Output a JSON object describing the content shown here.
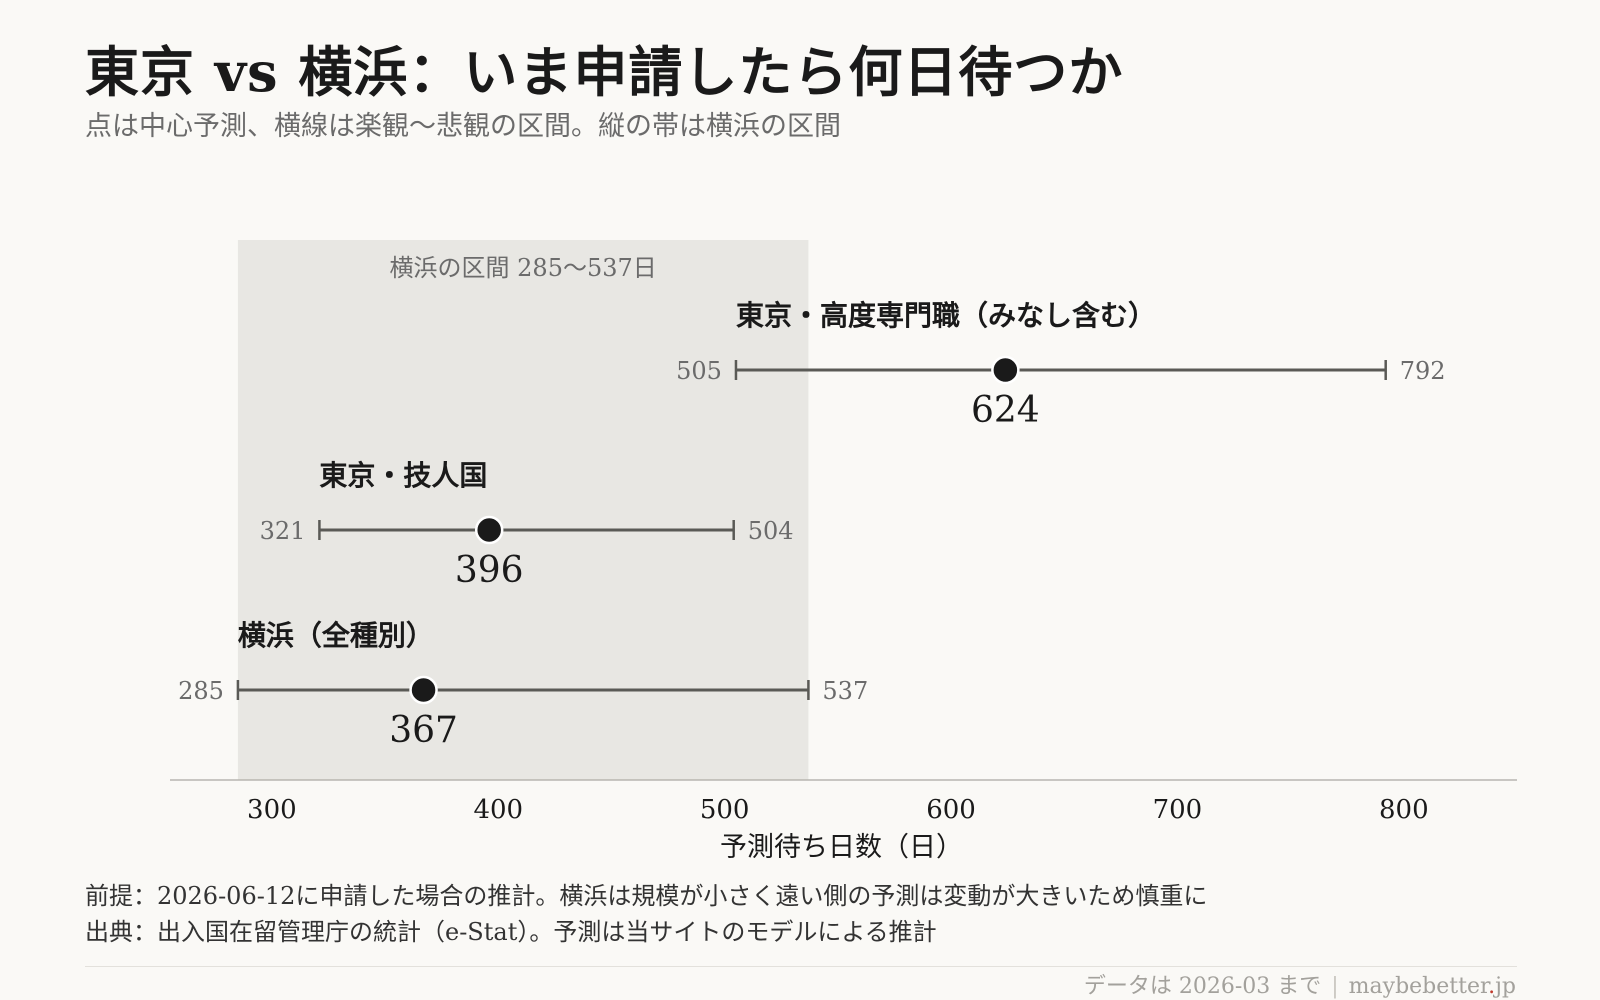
{
  "header": {
    "title": "東京 vs 横浜：いま申請したら何日待つか",
    "subtitle": "点は中心予測、横線は楽観〜悲観の区間。縦の帯は横浜の区間"
  },
  "chart_data": {
    "type": "dot-range",
    "xlabel": "予測待ち日数（日）",
    "xlim": [
      255,
      850
    ],
    "xticks": [
      300,
      400,
      500,
      600,
      700,
      800
    ],
    "band": {
      "label": "横浜の区間 285〜537日",
      "from": 285,
      "to": 537
    },
    "rows": [
      {
        "label": "東京・高度専門職（みなし含む）",
        "low": 505,
        "center": 624,
        "high": 792
      },
      {
        "label": "東京・技人国",
        "low": 321,
        "center": 396,
        "high": 504
      },
      {
        "label": "横浜（全種別）",
        "low": 285,
        "center": 367,
        "high": 537
      }
    ]
  },
  "notes": {
    "assumption": "前提：2026-06-12に申請した場合の推計。横浜は規模が小さく遠い側の予測は変動が大きいため慎重に",
    "source": "出典：出入国在留管理庁の統計（e-Stat）。予測は当サイトのモデルによる推計"
  },
  "footer": {
    "data_as_of": "データは 2026-03 まで",
    "site_name": "maybebetter",
    "site_dot": ".",
    "site_tld": "jp"
  },
  "colors": {
    "background": "#faf9f6",
    "band": "#e8e7e3",
    "line": "#5a5a56",
    "dot": "#1a1a1a",
    "muted_text": "#6b6b6b",
    "accent_dot": "#c0392b"
  }
}
